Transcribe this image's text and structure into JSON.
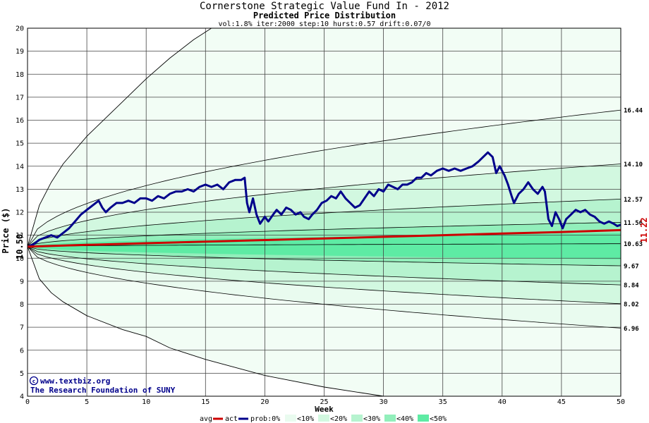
{
  "chart_data": {
    "type": "line",
    "title": "Cornerstone Strategic Value Fund In - 2012",
    "subtitle": "Predicted Price Distribution",
    "params": "vol:1.8% iter:2000 step:10 hurst:0.57 drift:0.07/0",
    "xlabel": "Week",
    "ylabel": "Price ($)",
    "xlim": [
      0,
      50
    ],
    "ylim": [
      4,
      20
    ],
    "grid": true,
    "x_ticks": [
      0,
      5,
      10,
      15,
      20,
      25,
      30,
      35,
      40,
      45,
      50
    ],
    "y_ticks": [
      4,
      5,
      6,
      7,
      8,
      9,
      10,
      11,
      12,
      13,
      14,
      15,
      16,
      17,
      18,
      19,
      20
    ],
    "start_price_label": "10.50",
    "end_avg_label": "11.22",
    "start_price": 10.5,
    "band_colors": [
      "#e9fbef",
      "#d2f8e0",
      "#b6f3cf",
      "#92efbb",
      "#5eeba4"
    ],
    "percentile_end_values": [
      {
        "label": "16.44",
        "value": 16.44
      },
      {
        "label": "14.10",
        "value": 14.1
      },
      {
        "label": "12.57",
        "value": 12.57
      },
      {
        "label": "11.56",
        "value": 11.56
      },
      {
        "label": "10.63",
        "value": 10.63
      },
      {
        "label": "9.67",
        "value": 9.67
      },
      {
        "label": "8.84",
        "value": 8.84
      },
      {
        "label": "8.02",
        "value": 8.02
      },
      {
        "label": "6.96",
        "value": 6.96
      }
    ],
    "outer_envelope": {
      "upper": [
        [
          0,
          10.5
        ],
        [
          1,
          12.3
        ],
        [
          2,
          13.3
        ],
        [
          3,
          14.1
        ],
        [
          5,
          15.3
        ],
        [
          8,
          16.8
        ],
        [
          10,
          17.8
        ],
        [
          12,
          18.7
        ],
        [
          14,
          19.5
        ],
        [
          15.5,
          20
        ]
      ],
      "lower": [
        [
          0,
          10.5
        ],
        [
          1,
          9.1
        ],
        [
          2,
          8.5
        ],
        [
          3,
          8.1
        ],
        [
          5,
          7.5
        ],
        [
          8,
          6.9
        ],
        [
          10,
          6.6
        ],
        [
          12,
          6.1
        ],
        [
          15,
          5.6
        ],
        [
          20,
          4.9
        ],
        [
          25,
          4.4
        ],
        [
          30,
          4.0
        ]
      ]
    },
    "series": [
      {
        "name": "act",
        "color": "#00008b",
        "points": [
          [
            0,
            10.5
          ],
          [
            0.5,
            10.6
          ],
          [
            1,
            10.8
          ],
          [
            1.5,
            10.9
          ],
          [
            2,
            11.0
          ],
          [
            2.5,
            10.9
          ],
          [
            3,
            11.1
          ],
          [
            3.5,
            11.3
          ],
          [
            4,
            11.6
          ],
          [
            4.5,
            11.9
          ],
          [
            5,
            12.1
          ],
          [
            5.5,
            12.3
          ],
          [
            6,
            12.5
          ],
          [
            6.3,
            12.2
          ],
          [
            6.6,
            12.0
          ],
          [
            7,
            12.2
          ],
          [
            7.5,
            12.4
          ],
          [
            8,
            12.4
          ],
          [
            8.5,
            12.5
          ],
          [
            9,
            12.4
          ],
          [
            9.5,
            12.6
          ],
          [
            10,
            12.6
          ],
          [
            10.5,
            12.5
          ],
          [
            11,
            12.7
          ],
          [
            11.5,
            12.6
          ],
          [
            12,
            12.8
          ],
          [
            12.5,
            12.9
          ],
          [
            13,
            12.9
          ],
          [
            13.5,
            13.0
          ],
          [
            14,
            12.9
          ],
          [
            14.5,
            13.1
          ],
          [
            15,
            13.2
          ],
          [
            15.5,
            13.1
          ],
          [
            16,
            13.2
          ],
          [
            16.5,
            13.0
          ],
          [
            17,
            13.3
          ],
          [
            17.5,
            13.4
          ],
          [
            18,
            13.4
          ],
          [
            18.3,
            13.5
          ],
          [
            18.5,
            12.4
          ],
          [
            18.7,
            12.0
          ],
          [
            19,
            12.6
          ],
          [
            19.3,
            11.9
          ],
          [
            19.6,
            11.5
          ],
          [
            20,
            11.8
          ],
          [
            20.3,
            11.6
          ],
          [
            20.7,
            11.9
          ],
          [
            21,
            12.1
          ],
          [
            21.4,
            11.9
          ],
          [
            21.8,
            12.2
          ],
          [
            22.2,
            12.1
          ],
          [
            22.6,
            11.9
          ],
          [
            23,
            12.0
          ],
          [
            23.3,
            11.8
          ],
          [
            23.7,
            11.7
          ],
          [
            24,
            11.9
          ],
          [
            24.4,
            12.1
          ],
          [
            24.8,
            12.4
          ],
          [
            25.2,
            12.5
          ],
          [
            25.6,
            12.7
          ],
          [
            26,
            12.6
          ],
          [
            26.4,
            12.9
          ],
          [
            26.8,
            12.6
          ],
          [
            27.2,
            12.4
          ],
          [
            27.6,
            12.2
          ],
          [
            28,
            12.3
          ],
          [
            28.4,
            12.6
          ],
          [
            28.8,
            12.9
          ],
          [
            29.2,
            12.7
          ],
          [
            29.6,
            13.0
          ],
          [
            30,
            12.9
          ],
          [
            30.4,
            13.2
          ],
          [
            30.8,
            13.1
          ],
          [
            31.2,
            13.0
          ],
          [
            31.6,
            13.2
          ],
          [
            32,
            13.2
          ],
          [
            32.4,
            13.3
          ],
          [
            32.8,
            13.5
          ],
          [
            33.2,
            13.5
          ],
          [
            33.6,
            13.7
          ],
          [
            34,
            13.6
          ],
          [
            34.5,
            13.8
          ],
          [
            35,
            13.9
          ],
          [
            35.5,
            13.8
          ],
          [
            36,
            13.9
          ],
          [
            36.5,
            13.8
          ],
          [
            37,
            13.9
          ],
          [
            37.5,
            14.0
          ],
          [
            38,
            14.2
          ],
          [
            38.4,
            14.4
          ],
          [
            38.8,
            14.6
          ],
          [
            39.2,
            14.4
          ],
          [
            39.5,
            13.7
          ],
          [
            39.8,
            14.0
          ],
          [
            40.2,
            13.6
          ],
          [
            40.5,
            13.2
          ],
          [
            40.8,
            12.7
          ],
          [
            41,
            12.4
          ],
          [
            41.4,
            12.8
          ],
          [
            41.8,
            13.0
          ],
          [
            42.2,
            13.3
          ],
          [
            42.6,
            13.0
          ],
          [
            43,
            12.8
          ],
          [
            43.4,
            13.1
          ],
          [
            43.6,
            12.9
          ],
          [
            43.9,
            11.7
          ],
          [
            44.2,
            11.4
          ],
          [
            44.5,
            12.0
          ],
          [
            44.8,
            11.7
          ],
          [
            45.1,
            11.3
          ],
          [
            45.4,
            11.7
          ],
          [
            45.8,
            11.9
          ],
          [
            46.2,
            12.1
          ],
          [
            46.6,
            12.0
          ],
          [
            47,
            12.1
          ],
          [
            47.4,
            11.9
          ],
          [
            47.8,
            11.8
          ],
          [
            48.2,
            11.6
          ],
          [
            48.6,
            11.5
          ],
          [
            49,
            11.6
          ],
          [
            49.4,
            11.5
          ],
          [
            49.7,
            11.4
          ],
          [
            50,
            11.45
          ]
        ]
      },
      {
        "name": "avg",
        "color": "#cc0000",
        "points": [
          [
            0,
            10.5
          ],
          [
            5,
            10.58
          ],
          [
            10,
            10.65
          ],
          [
            15,
            10.72
          ],
          [
            20,
            10.79
          ],
          [
            25,
            10.86
          ],
          [
            30,
            10.93
          ],
          [
            35,
            11.0
          ],
          [
            40,
            11.07
          ],
          [
            45,
            11.14
          ],
          [
            50,
            11.22
          ]
        ]
      }
    ],
    "legend": {
      "avg": "avg",
      "act": "act",
      "prob": "prob:0%",
      "b1": "<10%",
      "b2": "<20%",
      "b3": "<30%",
      "b4": "<40%",
      "b5": "<50%"
    },
    "credits": {
      "line1": "www.textbiz.org",
      "line2": "The Research Foundation of SUNY",
      "copyright": "©"
    }
  }
}
